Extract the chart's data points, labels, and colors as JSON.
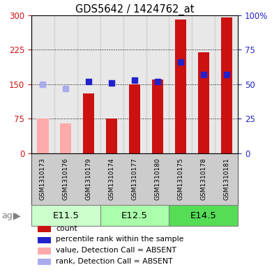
{
  "title": "GDS5642 / 1424762_at",
  "samples": [
    "GSM1310173",
    "GSM1310176",
    "GSM1310179",
    "GSM1310174",
    "GSM1310177",
    "GSM1310180",
    "GSM1310175",
    "GSM1310178",
    "GSM1310181"
  ],
  "count_values": [
    null,
    null,
    130,
    75,
    150,
    160,
    290,
    220,
    295
  ],
  "count_absent": [
    75,
    65,
    null,
    null,
    null,
    null,
    null,
    null,
    null
  ],
  "percentile_values": [
    null,
    null,
    52,
    51,
    53,
    52,
    66,
    57,
    57
  ],
  "percentile_absent": [
    50,
    47,
    null,
    null,
    null,
    null,
    null,
    null,
    null
  ],
  "ylim_left": [
    0,
    300
  ],
  "ylim_right": [
    0,
    100
  ],
  "yticks_left": [
    0,
    75,
    150,
    225,
    300
  ],
  "yticks_right": [
    0,
    25,
    50,
    75,
    100
  ],
  "ytick_labels_left": [
    "0",
    "75",
    "150",
    "225",
    "300"
  ],
  "ytick_labels_right": [
    "0",
    "25",
    "50",
    "75",
    "100%"
  ],
  "bar_width": 0.5,
  "count_color": "#cc1111",
  "count_absent_color": "#ffaaaa",
  "percentile_color": "#2222cc",
  "percentile_absent_color": "#aaaaee",
  "age_groups": [
    {
      "label": "E11.5",
      "color": "#ccffcc",
      "start": 0,
      "end": 2
    },
    {
      "label": "E12.5",
      "color": "#aaffaa",
      "start": 3,
      "end": 5
    },
    {
      "label": "E14.5",
      "color": "#55dd55",
      "start": 6,
      "end": 8
    }
  ],
  "col_bg_color": "#cccccc",
  "legend_items": [
    {
      "label": "count",
      "color": "#cc1111"
    },
    {
      "label": "percentile rank within the sample",
      "color": "#2222cc"
    },
    {
      "label": "value, Detection Call = ABSENT",
      "color": "#ffaaaa"
    },
    {
      "label": "rank, Detection Call = ABSENT",
      "color": "#aaaaee"
    }
  ]
}
